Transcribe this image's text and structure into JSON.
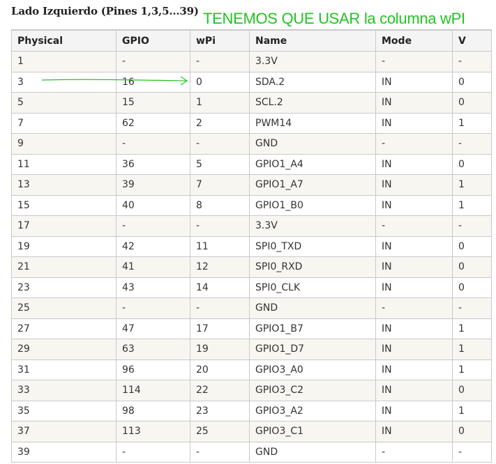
{
  "heading": "Lado Izquierdo (Pines 1,3,5...39)",
  "annotation": "TENEMOS QUE USAR la columna wPI",
  "annotation_color": "#22c422",
  "table": {
    "headers": [
      "Physical",
      "GPIO",
      "wPi",
      "Name",
      "Mode",
      "V"
    ],
    "rows": [
      [
        "1",
        "-",
        "-",
        "3.3V",
        "-",
        "-"
      ],
      [
        "3",
        "16",
        "0",
        "SDA.2",
        "IN",
        "0"
      ],
      [
        "5",
        "15",
        "1",
        "SCL.2",
        "IN",
        "0"
      ],
      [
        "7",
        "62",
        "2",
        "PWM14",
        "IN",
        "1"
      ],
      [
        "9",
        "-",
        "-",
        "GND",
        "-",
        "-"
      ],
      [
        "11",
        "36",
        "5",
        "GPIO1_A4",
        "IN",
        "0"
      ],
      [
        "13",
        "39",
        "7",
        "GPIO1_A7",
        "IN",
        "1"
      ],
      [
        "15",
        "40",
        "8",
        "GPIO1_B0",
        "IN",
        "1"
      ],
      [
        "17",
        "-",
        "-",
        "3.3V",
        "-",
        "-"
      ],
      [
        "19",
        "42",
        "11",
        "SPI0_TXD",
        "IN",
        "0"
      ],
      [
        "21",
        "41",
        "12",
        "SPI0_RXD",
        "IN",
        "0"
      ],
      [
        "23",
        "43",
        "14",
        "SPI0_CLK",
        "IN",
        "0"
      ],
      [
        "25",
        "-",
        "-",
        "GND",
        "-",
        "-"
      ],
      [
        "27",
        "47",
        "17",
        "GPIO1_B7",
        "IN",
        "1"
      ],
      [
        "29",
        "63",
        "19",
        "GPIO1_D7",
        "IN",
        "1"
      ],
      [
        "31",
        "96",
        "20",
        "GPIO3_A0",
        "IN",
        "1"
      ],
      [
        "33",
        "114",
        "22",
        "GPIO3_C2",
        "IN",
        "0"
      ],
      [
        "35",
        "98",
        "23",
        "GPIO3_A2",
        "IN",
        "1"
      ],
      [
        "37",
        "113",
        "25",
        "GPIO3_C1",
        "IN",
        "0"
      ],
      [
        "39",
        "-",
        "-",
        "GND",
        "-",
        "-"
      ]
    ]
  }
}
